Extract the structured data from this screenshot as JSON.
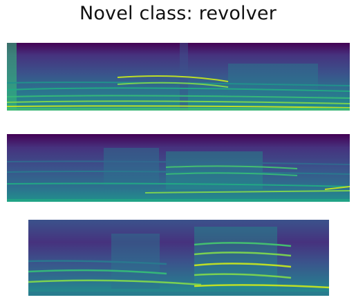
{
  "figure": {
    "title": "Novel class: revolver"
  },
  "colormap": [
    "#440154",
    "#482475",
    "#414487",
    "#355f8d",
    "#2a788e",
    "#21918c",
    "#22a884",
    "#44bf70",
    "#7ad151",
    "#bddf26",
    "#fde725"
  ],
  "spectrograms": [
    {
      "name": "spectrogram-1"
    },
    {
      "name": "spectrogram-2"
    },
    {
      "name": "spectrogram-3"
    }
  ]
}
